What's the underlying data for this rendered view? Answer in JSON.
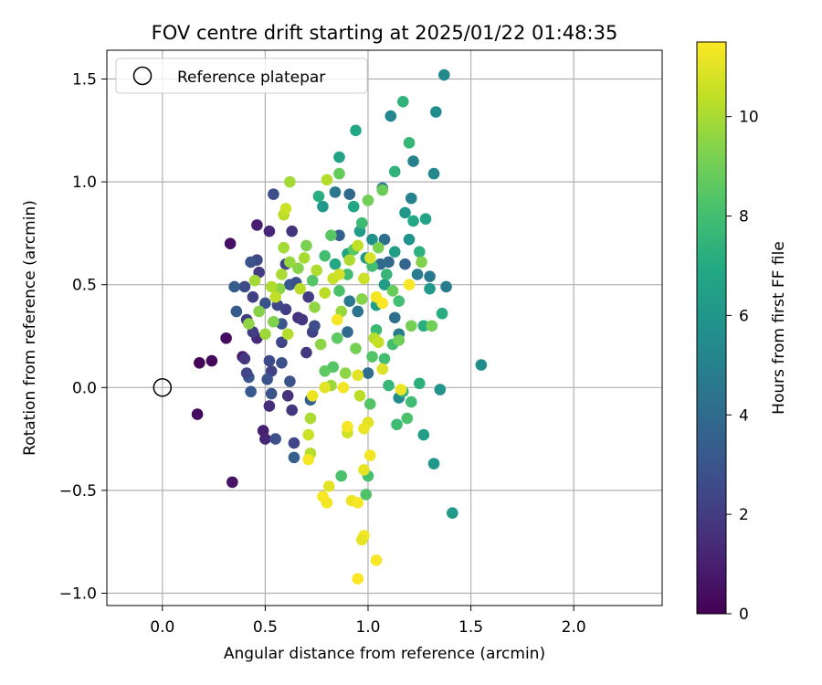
{
  "chart_data": {
    "type": "scatter",
    "title": "FOV centre drift starting at 2025/01/22 01:48:35",
    "xlabel": "Angular distance from reference (arcmin)",
    "ylabel": "Rotation from reference (arcmin)",
    "xlim": [
      -0.27,
      2.43
    ],
    "ylim": [
      -1.06,
      1.64
    ],
    "x_ticks": [
      0.0,
      0.5,
      1.0,
      1.5,
      2.0
    ],
    "x_tick_labels": [
      "0.0",
      "0.5",
      "1.0",
      "1.5",
      "2.0"
    ],
    "y_ticks": [
      1.5,
      1.0,
      0.5,
      0.0,
      -0.5,
      -1.0
    ],
    "y_tick_labels": [
      "1.5",
      "1.0",
      "0.5",
      "0.0",
      "−0.5",
      "−1.0"
    ],
    "grid": true,
    "legend": {
      "placement": "top-left",
      "entries": [
        "Reference platepar"
      ]
    },
    "colormap": "viridis",
    "colorbar": {
      "label": "Hours from first FF file",
      "range": [
        0,
        11.5
      ],
      "ticks": [
        0,
        2,
        4,
        6,
        8,
        10
      ],
      "tick_labels": [
        "0",
        "2",
        "4",
        "6",
        "8",
        "10"
      ]
    },
    "reference_point": {
      "x": 0.0,
      "y": 0.0
    },
    "series": [
      {
        "points": [
          [
            0.18,
            0.12,
            0.1
          ],
          [
            0.24,
            0.13,
            0.2
          ],
          [
            0.17,
            -0.13,
            0.3
          ],
          [
            0.31,
            0.24,
            0.3
          ],
          [
            0.33,
            0.7,
            0.5
          ],
          [
            0.34,
            -0.46,
            0.6
          ],
          [
            0.39,
            0.15,
            0.8
          ],
          [
            0.46,
            0.79,
            1.0
          ],
          [
            0.49,
            -0.21,
            1.0
          ],
          [
            0.52,
            0.76,
            1.2
          ],
          [
            0.5,
            -0.25,
            1.3
          ],
          [
            0.46,
            0.24,
            1.4
          ],
          [
            0.52,
            -0.09,
            1.5
          ],
          [
            0.61,
            -0.04,
            1.6
          ],
          [
            0.63,
            0.76,
            1.7
          ],
          [
            0.63,
            -0.11,
            1.8
          ],
          [
            0.7,
            0.17,
            1.9
          ],
          [
            0.47,
            0.56,
            2.0
          ],
          [
            0.44,
            0.27,
            2.1
          ],
          [
            0.53,
            0.08,
            2.2
          ],
          [
            0.58,
            0.22,
            2.3
          ],
          [
            0.64,
            -0.27,
            2.4
          ],
          [
            0.46,
            0.62,
            2.5
          ],
          [
            0.4,
            0.49,
            2.6
          ],
          [
            0.54,
            0.94,
            2.7
          ],
          [
            0.55,
            -0.25,
            2.8
          ],
          [
            0.43,
            0.61,
            2.9
          ],
          [
            0.51,
            0.04,
            3.0
          ],
          [
            0.42,
            0.05,
            3.1
          ],
          [
            0.43,
            -0.02,
            3.2
          ],
          [
            0.36,
            0.37,
            3.3
          ],
          [
            0.35,
            0.49,
            3.4
          ],
          [
            0.64,
            -0.34,
            3.5
          ],
          [
            0.41,
            0.07,
            2.4
          ],
          [
            0.52,
            0.13,
            2.6
          ],
          [
            0.53,
            -0.03,
            3.0
          ],
          [
            0.58,
            0.12,
            2.8
          ],
          [
            0.6,
            0.38,
            2.2
          ],
          [
            0.66,
            0.34,
            1.6
          ],
          [
            0.72,
            -0.06,
            3.6
          ],
          [
            0.4,
            0.14,
            1.8
          ],
          [
            0.41,
            0.33,
            2.0
          ],
          [
            0.44,
            0.44,
            2.2
          ],
          [
            0.5,
            0.41,
            3.0
          ],
          [
            0.56,
            0.4,
            2.5
          ],
          [
            0.58,
            0.31,
            3.1
          ],
          [
            0.62,
            0.03,
            2.9
          ],
          [
            0.68,
            0.33,
            1.9
          ],
          [
            0.71,
            0.44,
            2.0
          ],
          [
            0.6,
            0.6,
            2.3
          ],
          [
            0.62,
            0.5,
            3.2
          ],
          [
            0.65,
            0.51,
            2.9
          ],
          [
            0.73,
            0.27,
            2.2
          ],
          [
            0.74,
            0.3,
            2.7
          ],
          [
            0.86,
            0.74,
            3.5
          ],
          [
            0.91,
            0.94,
            3.9
          ],
          [
            0.84,
            0.95,
            4.6
          ],
          [
            0.9,
            0.27,
            4.0
          ],
          [
            0.91,
            0.42,
            4.6
          ],
          [
            0.95,
            0.37,
            4.4
          ],
          [
            1.0,
            0.07,
            4.2
          ],
          [
            1.06,
            0.6,
            4.0
          ],
          [
            1.08,
            0.72,
            4.3
          ],
          [
            1.1,
            0.61,
            3.9
          ],
          [
            1.07,
            0.97,
            4.7
          ],
          [
            1.13,
            0.34,
            4.2
          ],
          [
            1.15,
            0.26,
            4.8
          ],
          [
            1.18,
            0.6,
            3.7
          ],
          [
            1.21,
            0.92,
            5.0
          ],
          [
            1.24,
            0.55,
            4.8
          ],
          [
            1.3,
            0.54,
            4.6
          ],
          [
            1.38,
            0.49,
            4.8
          ],
          [
            1.37,
            1.52,
            5.4
          ],
          [
            1.33,
            1.34,
            5.6
          ],
          [
            1.32,
            1.04,
            5.3
          ],
          [
            1.55,
            0.11,
            5.6
          ],
          [
            1.41,
            -0.61,
            6.2
          ],
          [
            1.32,
            -0.37,
            6.0
          ],
          [
            1.35,
            -0.01,
            5.9
          ],
          [
            1.27,
            -0.23,
            6.4
          ],
          [
            1.15,
            -0.05,
            5.5
          ],
          [
            1.2,
            0.72,
            5.8
          ],
          [
            1.22,
            1.1,
            5.1
          ],
          [
            1.11,
            1.32,
            5.3
          ],
          [
            1.18,
            0.85,
            6.0
          ],
          [
            1.28,
            0.82,
            6.6
          ],
          [
            1.3,
            0.48,
            6.2
          ],
          [
            1.13,
            0.66,
            6.4
          ],
          [
            1.08,
            0.5,
            6.3
          ],
          [
            1.04,
            0.4,
            6.5
          ],
          [
            1.02,
            0.72,
            5.8
          ],
          [
            0.99,
            0.63,
            6.1
          ],
          [
            0.96,
            0.76,
            6.3
          ],
          [
            0.93,
            0.88,
            6.8
          ],
          [
            0.9,
            0.65,
            6.7
          ],
          [
            0.86,
            1.12,
            6.6
          ],
          [
            0.84,
            0.6,
            6.9
          ],
          [
            0.78,
            0.88,
            6.1
          ],
          [
            0.76,
            0.93,
            7.2
          ],
          [
            0.94,
            1.25,
            6.9
          ],
          [
            1.17,
            1.39,
            7.4
          ],
          [
            1.2,
            1.19,
            7.6
          ],
          [
            1.13,
            1.05,
            7.4
          ],
          [
            1.22,
            0.81,
            6.9
          ],
          [
            1.25,
            0.66,
            7.3
          ],
          [
            1.27,
            0.3,
            7.2
          ],
          [
            1.36,
            0.36,
            7.1
          ],
          [
            1.25,
            0.02,
            7.3
          ],
          [
            1.17,
            -0.02,
            7.6
          ],
          [
            1.21,
            -0.07,
            7.9
          ],
          [
            1.19,
            -0.15,
            8.2
          ],
          [
            1.14,
            -0.18,
            7.8
          ],
          [
            1.1,
            0.01,
            7.6
          ],
          [
            1.01,
            -0.08,
            8.4
          ],
          [
            1.0,
            -0.43,
            8.1
          ],
          [
            0.99,
            -0.52,
            8.3
          ],
          [
            0.87,
            -0.43,
            8.2
          ],
          [
            1.04,
            0.28,
            7.7
          ],
          [
            1.08,
            0.14,
            8.0
          ],
          [
            1.02,
            0.15,
            8.4
          ],
          [
            1.12,
            0.21,
            8.0
          ],
          [
            1.15,
            0.42,
            8.0
          ],
          [
            1.09,
            0.55,
            7.6
          ],
          [
            1.02,
            0.59,
            8.0
          ],
          [
            0.97,
            0.8,
            7.8
          ],
          [
            0.93,
            0.67,
            8.5
          ],
          [
            0.9,
            0.55,
            7.9
          ],
          [
            0.86,
            0.47,
            8.2
          ],
          [
            0.85,
            0.24,
            8.6
          ],
          [
            0.83,
            0.1,
            8.4
          ],
          [
            0.79,
            0.08,
            8.6
          ],
          [
            0.79,
            0.64,
            8.0
          ],
          [
            0.73,
            0.52,
            8.4
          ],
          [
            0.82,
            0.74,
            8.5
          ],
          [
            0.86,
            1.04,
            8.8
          ],
          [
            1.0,
            0.91,
            9.0
          ],
          [
            1.05,
            0.68,
            9.2
          ],
          [
            1.12,
            0.47,
            8.8
          ],
          [
            1.15,
            0.23,
            9.0
          ],
          [
            1.21,
            0.3,
            9.1
          ],
          [
            1.26,
            0.61,
            9.3
          ],
          [
            1.31,
            0.3,
            9.0
          ],
          [
            1.07,
            0.96,
            8.9
          ],
          [
            0.97,
            0.43,
            9.4
          ],
          [
            0.94,
            0.19,
            9.1
          ],
          [
            0.89,
            0.07,
            9.5
          ],
          [
            0.87,
            0.37,
            9.7
          ],
          [
            0.82,
            0.01,
            9.8
          ],
          [
            0.77,
            0.21,
            9.5
          ],
          [
            0.74,
            0.39,
            9.6
          ],
          [
            0.7,
            0.69,
            9.2
          ],
          [
            0.66,
            0.58,
            9.4
          ],
          [
            0.62,
            0.61,
            9.7
          ],
          [
            0.59,
            0.68,
            9.9
          ],
          [
            0.57,
            0.48,
            9.5
          ],
          [
            0.54,
            0.32,
            9.3
          ],
          [
            0.5,
            0.26,
            9.8
          ],
          [
            0.47,
            0.37,
            9.4
          ],
          [
            0.45,
            0.52,
            9.9
          ],
          [
            0.42,
            0.31,
            9.6
          ],
          [
            0.53,
            0.49,
            10.1
          ],
          [
            0.55,
            0.44,
            10.4
          ],
          [
            0.58,
            0.55,
            10.0
          ],
          [
            0.61,
            0.26,
            10.2
          ],
          [
            0.67,
            0.48,
            10.3
          ],
          [
            0.69,
            0.63,
            10.0
          ],
          [
            0.75,
            0.57,
            10.1
          ],
          [
            0.8,
            1.01,
            10.2
          ],
          [
            0.62,
            1.0,
            9.9
          ],
          [
            0.59,
            0.84,
            10.3
          ],
          [
            0.6,
            0.87,
            10.6
          ],
          [
            0.72,
            -0.15,
            10.0
          ],
          [
            0.72,
            -0.32,
            10.2
          ],
          [
            0.71,
            -0.23,
            10.6
          ],
          [
            0.79,
            0.46,
            10.3
          ],
          [
            0.83,
            0.53,
            10.5
          ],
          [
            0.86,
            0.55,
            10.7
          ],
          [
            0.91,
            0.62,
            10.1
          ],
          [
            0.95,
            0.69,
            10.4
          ],
          [
            0.98,
            0.53,
            10.6
          ],
          [
            1.01,
            0.63,
            10.8
          ],
          [
            1.03,
            0.24,
            10.2
          ],
          [
            1.05,
            0.22,
            10.5
          ],
          [
            1.07,
            0.09,
            10.9
          ],
          [
            0.96,
            -0.04,
            10.3
          ],
          [
            0.9,
            -0.22,
            10.7
          ],
          [
            0.79,
            0.0,
            11.0
          ],
          [
            0.73,
            -0.04,
            11.2
          ],
          [
            0.71,
            -0.35,
            11.3
          ],
          [
            0.81,
            -0.48,
            11.0
          ],
          [
            0.8,
            -0.56,
            11.3
          ],
          [
            0.78,
            -0.53,
            11.4
          ],
          [
            0.92,
            -0.55,
            11.2
          ],
          [
            0.95,
            -0.56,
            11.4
          ],
          [
            0.98,
            -0.72,
            11.3
          ],
          [
            0.97,
            -0.74,
            11.1
          ],
          [
            1.04,
            -0.84,
            11.4
          ],
          [
            0.95,
            -0.93,
            11.5
          ],
          [
            1.0,
            -0.17,
            11.0
          ],
          [
            0.98,
            -0.2,
            11.2
          ],
          [
            0.9,
            -0.19,
            11.4
          ],
          [
            0.98,
            -0.4,
            11.1
          ],
          [
            1.01,
            -0.33,
            11.3
          ],
          [
            1.04,
            0.44,
            11.3
          ],
          [
            1.07,
            0.41,
            11.5
          ],
          [
            1.2,
            0.5,
            11.4
          ],
          [
            1.16,
            -0.01,
            11.2
          ],
          [
            0.95,
            0.06,
            11.0
          ],
          [
            0.88,
            0.0,
            11.3
          ],
          [
            0.85,
            0.33,
            11.4
          ]
        ]
      }
    ]
  }
}
